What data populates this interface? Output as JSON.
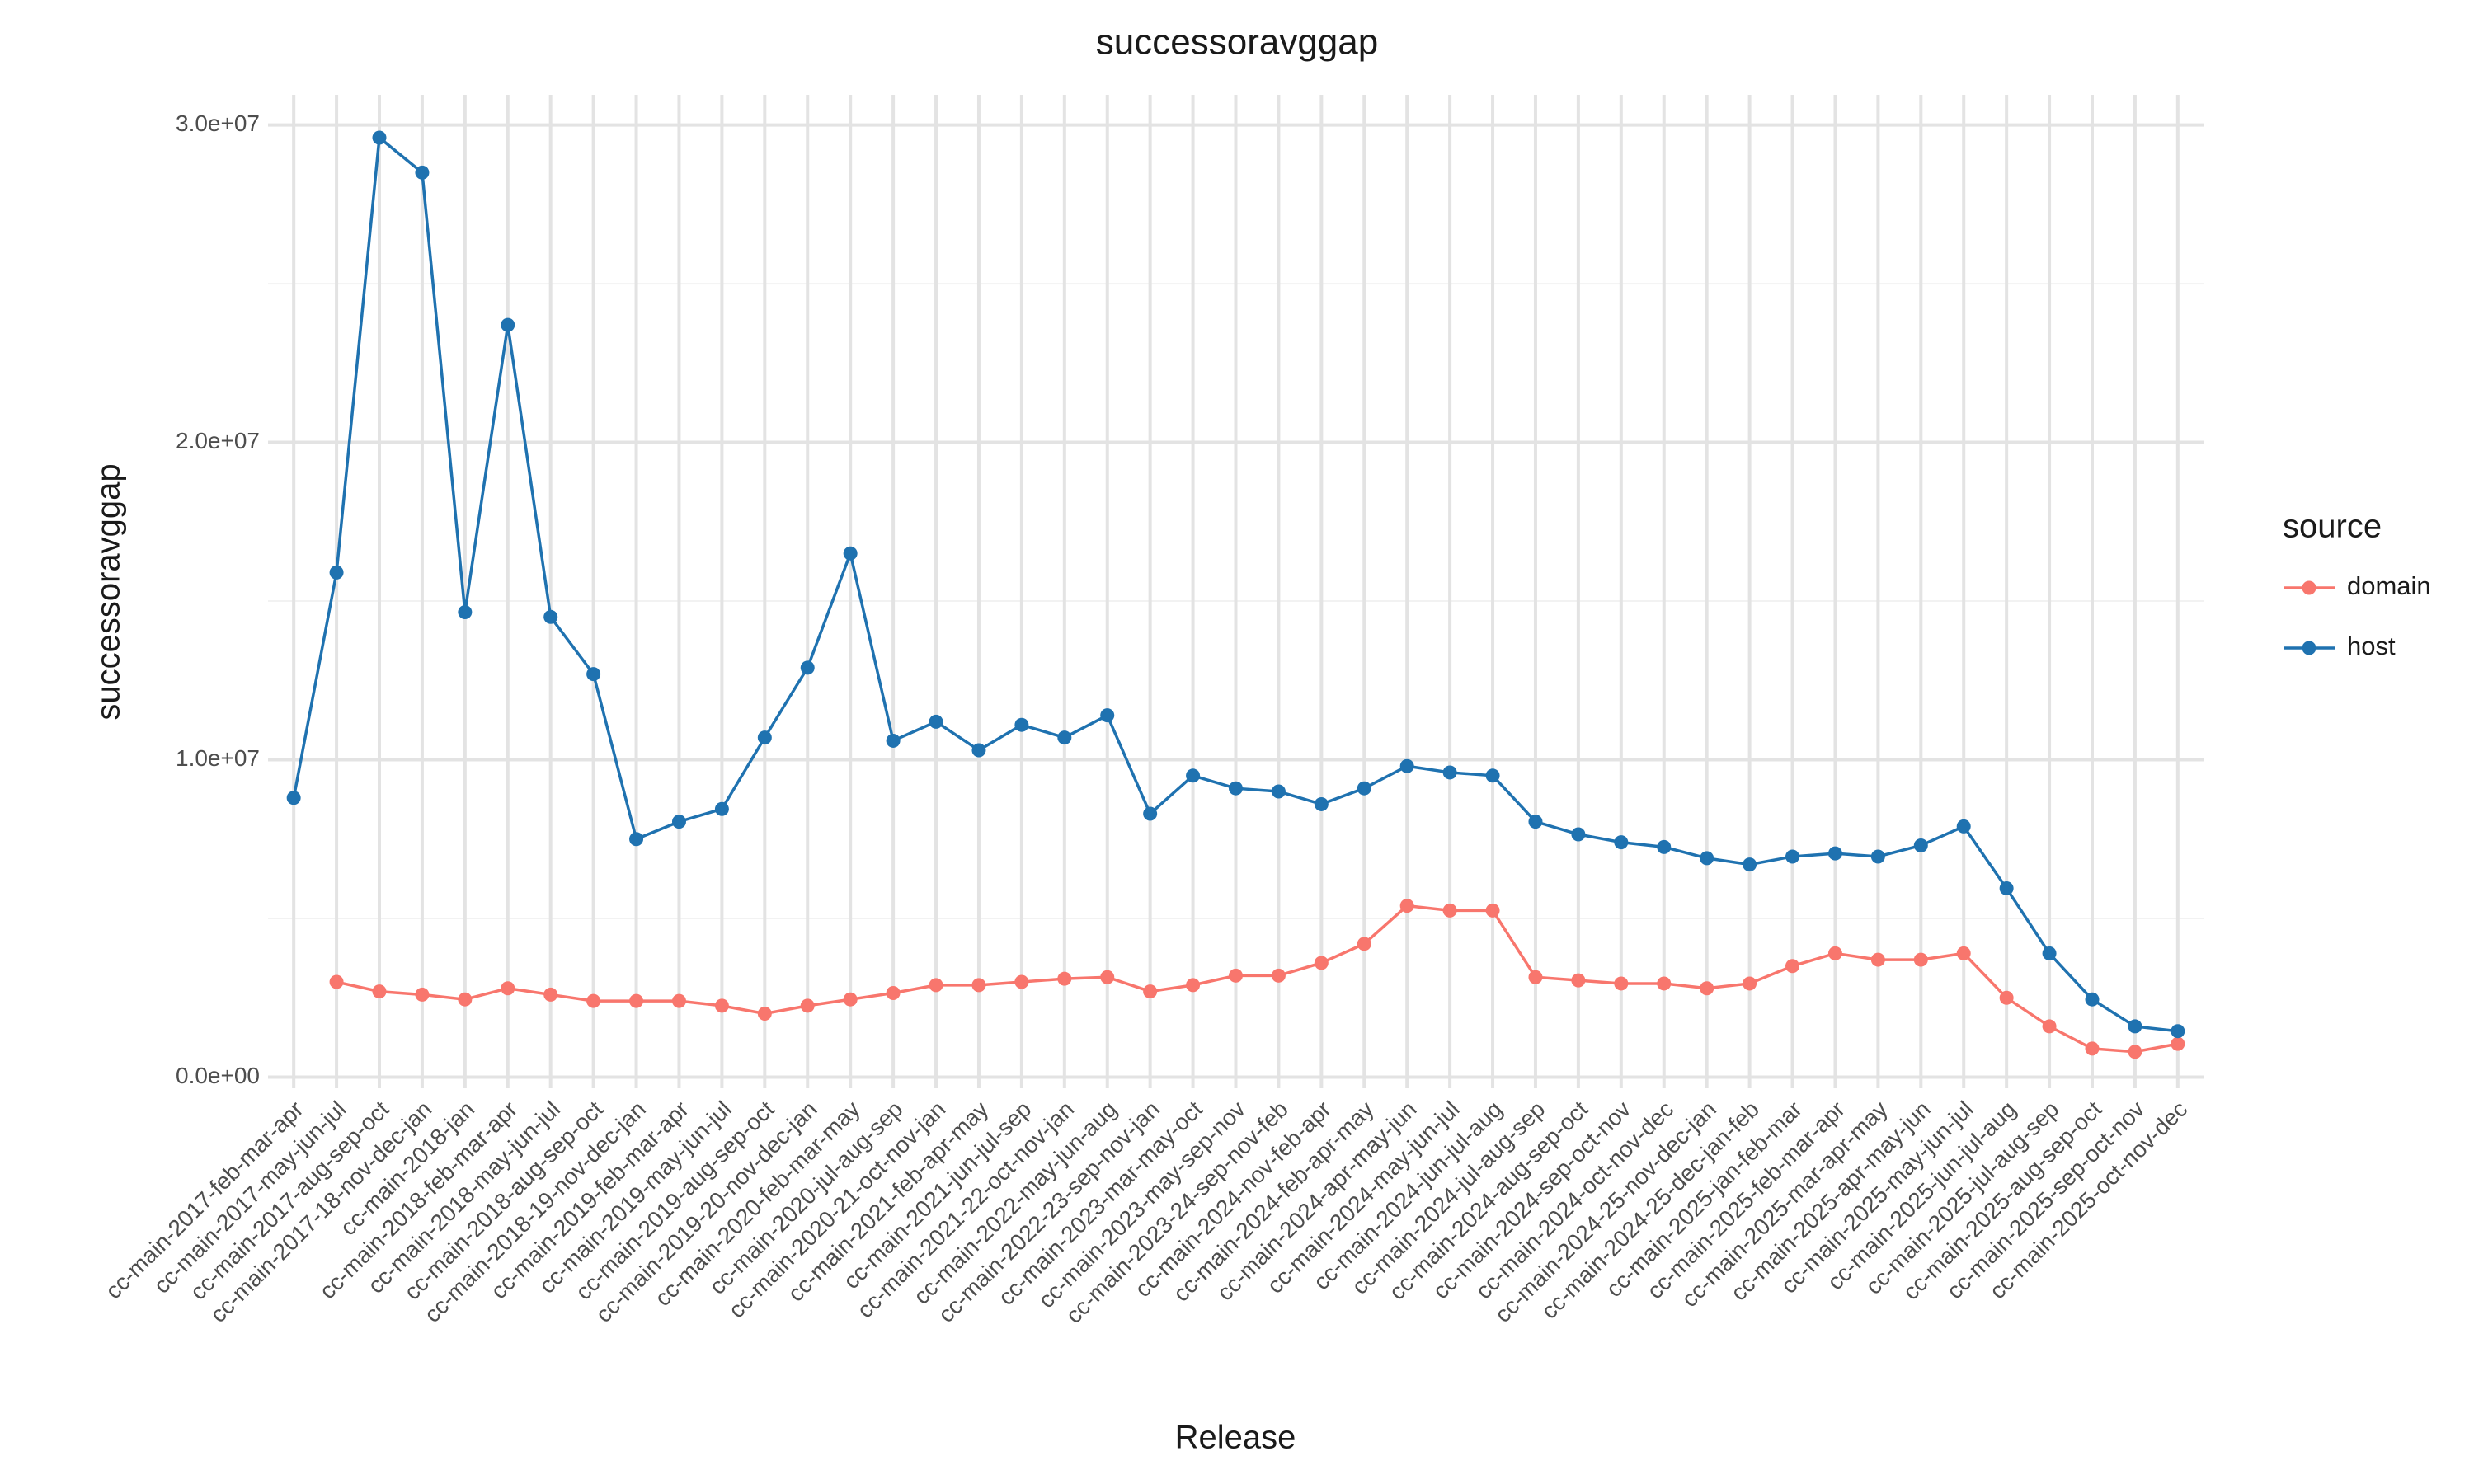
{
  "chart_data": {
    "type": "line",
    "title": "successoravggap",
    "x_label": "Release",
    "y_label": "successoravggap",
    "categories": [
      "cc-main-2017-feb-mar-apr",
      "cc-main-2017-may-jun-jul",
      "cc-main-2017-aug-sep-oct",
      "cc-main-2017-18-nov-dec-jan",
      "cc-main-2018-jan",
      "cc-main-2018-feb-mar-apr",
      "cc-main-2018-may-jun-jul",
      "cc-main-2018-aug-sep-oct",
      "cc-main-2018-19-nov-dec-jan",
      "cc-main-2019-feb-mar-apr",
      "cc-main-2019-may-jun-jul",
      "cc-main-2019-aug-sep-oct",
      "cc-main-2019-20-nov-dec-jan",
      "cc-main-2020-feb-mar-may",
      "cc-main-2020-jul-aug-sep",
      "cc-main-2020-21-oct-nov-jan",
      "cc-main-2021-feb-apr-may",
      "cc-main-2021-jun-jul-sep",
      "cc-main-2021-22-oct-nov-jan",
      "cc-main-2022-may-jun-aug",
      "cc-main-2022-23-sep-nov-jan",
      "cc-main-2023-mar-may-oct",
      "cc-main-2023-may-sep-nov",
      "cc-main-2023-24-sep-nov-feb",
      "cc-main-2024-nov-feb-apr",
      "cc-main-2024-feb-apr-may",
      "cc-main-2024-apr-may-jun",
      "cc-main-2024-may-jun-jul",
      "cc-main-2024-jun-jul-aug",
      "cc-main-2024-jul-aug-sep",
      "cc-main-2024-aug-sep-oct",
      "cc-main-2024-sep-oct-nov",
      "cc-main-2024-oct-nov-dec",
      "cc-main-2024-25-nov-dec-jan",
      "cc-main-2024-25-dec-jan-feb",
      "cc-main-2025-jan-feb-mar",
      "cc-main-2025-feb-mar-apr",
      "cc-main-2025-mar-apr-may",
      "cc-main-2025-apr-may-jun",
      "cc-main-2025-may-jun-jul",
      "cc-main-2025-jun-jul-aug",
      "cc-main-2025-jul-aug-sep",
      "cc-main-2025-aug-sep-oct",
      "cc-main-2025-sep-oct-nov",
      "cc-main-2025-oct-nov-dec"
    ],
    "series": [
      {
        "name": "domain",
        "color": "#f8766d",
        "values": [
          null,
          3000000,
          2700000,
          2600000,
          2450000,
          2800000,
          2600000,
          2400000,
          2400000,
          2400000,
          2250000,
          2000000,
          2250000,
          2450000,
          2650000,
          2900000,
          2900000,
          3000000,
          3100000,
          3150000,
          2700000,
          2900000,
          3200000,
          3200000,
          3600000,
          4200000,
          5400000,
          5250000,
          5250000,
          3150000,
          3050000,
          2950000,
          2950000,
          2800000,
          2950000,
          3500000,
          3900000,
          3700000,
          3700000,
          3900000,
          2500000,
          1600000,
          900000,
          800000,
          1050000
        ]
      },
      {
        "name": "host",
        "color": "#1f72b0",
        "values": [
          8800000,
          15900000,
          29600000,
          28500000,
          14650000,
          23700000,
          14500000,
          12700000,
          7500000,
          8050000,
          8450000,
          10700000,
          12900000,
          16500000,
          10600000,
          11200000,
          10300000,
          11100000,
          10700000,
          11400000,
          8300000,
          9500000,
          9100000,
          9000000,
          8600000,
          9100000,
          9800000,
          9600000,
          9500000,
          8050000,
          7650000,
          7400000,
          7250000,
          6900000,
          6700000,
          6950000,
          7050000,
          6950000,
          7300000,
          7900000,
          5950000,
          3900000,
          2450000,
          1600000,
          1450000
        ]
      }
    ],
    "ylim": [
      -350000,
      30950000
    ],
    "yticks": [
      {
        "value": 0,
        "label": "0.0e+00"
      },
      {
        "value": 10000000,
        "label": "1.0e+07"
      },
      {
        "value": 20000000,
        "label": "2.0e+07"
      },
      {
        "value": 30000000,
        "label": "3.0e+07"
      }
    ],
    "y_minor_ticks": [
      5000000,
      15000000,
      25000000
    ],
    "grid": true,
    "legend_title": "source",
    "legend_position": "right"
  }
}
